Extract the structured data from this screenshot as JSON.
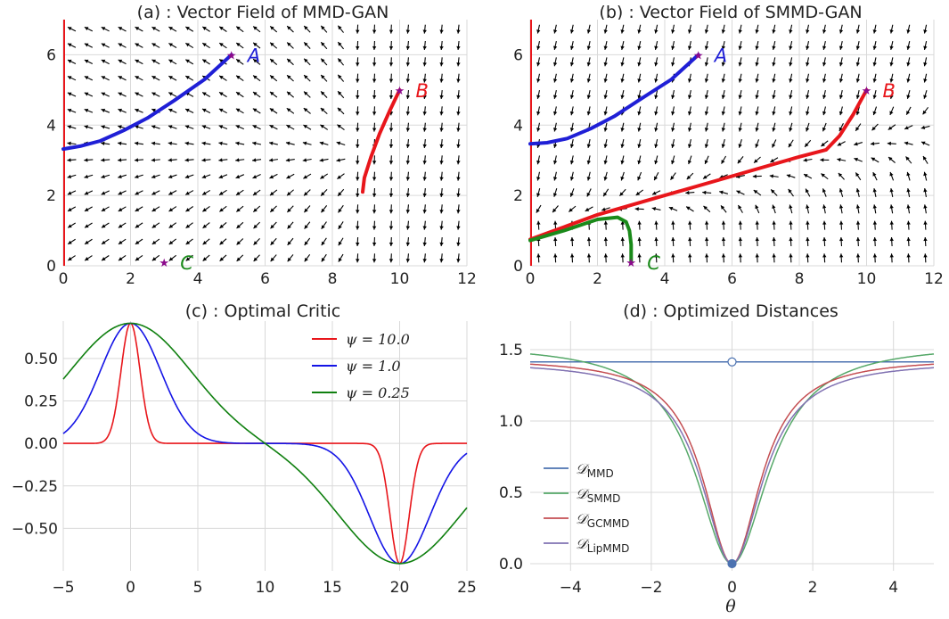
{
  "chart_data": [
    {
      "type": "vector_field",
      "title": "(a) : Vector Field of MMD-GAN",
      "xlim": [
        0,
        12
      ],
      "ylim": [
        0,
        7
      ],
      "xticks": [
        0,
        2,
        4,
        6,
        8,
        10,
        12
      ],
      "yticks": [
        0,
        2,
        4,
        6
      ],
      "field": "repulsive",
      "points": [
        {
          "label": "A",
          "x": 5,
          "y": 6,
          "color": "#1f1fd6"
        },
        {
          "label": "B",
          "x": 10,
          "y": 5,
          "color": "#e8161b"
        },
        {
          "label": "C",
          "x": 3,
          "y": 0.1,
          "color": "#1a8a1a"
        }
      ],
      "trajectories": [
        {
          "name": "A",
          "color": "#1f1fd6",
          "x": [
            5,
            4.2,
            3.3,
            2.5,
            1.8,
            1.1,
            0.5,
            0.0
          ],
          "y": [
            6,
            5.3,
            4.7,
            4.2,
            3.85,
            3.55,
            3.4,
            3.32
          ]
        },
        {
          "name": "B",
          "color": "#e8161b",
          "x": [
            10,
            9.7,
            9.4,
            9.15,
            8.95,
            8.9
          ],
          "y": [
            5,
            4.4,
            3.75,
            3.1,
            2.5,
            2.1
          ]
        },
        {
          "name": "C",
          "color": "#1a8a1a",
          "x": [
            3
          ],
          "y": [
            0.1
          ]
        }
      ]
    },
    {
      "type": "vector_field",
      "title": "(b) : Vector Field of SMMD-GAN",
      "xlim": [
        0,
        12
      ],
      "ylim": [
        0,
        7
      ],
      "xticks": [
        0,
        2,
        4,
        6,
        8,
        10,
        12
      ],
      "yticks": [
        0,
        2,
        4,
        6
      ],
      "field": "attractive",
      "points": [
        {
          "label": "A",
          "x": 5,
          "y": 6,
          "color": "#1f1fd6"
        },
        {
          "label": "B",
          "x": 10,
          "y": 5,
          "color": "#e8161b"
        },
        {
          "label": "C",
          "x": 3,
          "y": 0.1,
          "color": "#1a8a1a"
        }
      ],
      "trajectories": [
        {
          "name": "A",
          "color": "#1f1fd6",
          "x": [
            5,
            4.2,
            3.3,
            2.5,
            1.8,
            1.1,
            0.5,
            0.0
          ],
          "y": [
            6,
            5.3,
            4.75,
            4.25,
            3.9,
            3.62,
            3.5,
            3.47
          ]
        },
        {
          "name": "B",
          "color": "#e8161b",
          "x": [
            10,
            9.6,
            9.2,
            8.8,
            8.0,
            6.0,
            4.0,
            2.0,
            1.0,
            0.0
          ],
          "y": [
            5,
            4.3,
            3.7,
            3.3,
            3.1,
            2.55,
            2.0,
            1.45,
            1.1,
            0.75
          ]
        },
        {
          "name": "C",
          "color": "#1a8a1a",
          "x": [
            3.0,
            3.0,
            2.95,
            2.85,
            2.6,
            2.0,
            1.0,
            0.0
          ],
          "y": [
            0.1,
            0.6,
            1.0,
            1.25,
            1.38,
            1.32,
            1.0,
            0.72
          ]
        }
      ]
    },
    {
      "type": "line",
      "title": "(c) : Optimal Critic",
      "xlim": [
        -5,
        25
      ],
      "ylim": [
        -0.75,
        0.72
      ],
      "xticks": [
        -5,
        0,
        5,
        10,
        15,
        20,
        25
      ],
      "yticks": [
        -0.5,
        -0.25,
        0.0,
        0.25,
        0.5
      ],
      "ytick_labels": [
        "−0.50",
        "−0.25",
        "0.00",
        "0.25",
        "0.50"
      ],
      "xtick_labels": [
        "−5",
        "0",
        "5",
        "10",
        "15",
        "20",
        "25"
      ],
      "series": [
        {
          "name": "ψ = 10.0",
          "color": "#e8161b",
          "psi": 10.0
        },
        {
          "name": "ψ = 1.0",
          "color": "#1414e6",
          "psi": 1.0
        },
        {
          "name": "ψ = 0.25",
          "color": "#108010",
          "psi": 0.25
        }
      ],
      "amplitude": 0.7071,
      "centers": [
        0,
        20
      ]
    },
    {
      "type": "line",
      "title": "(d) : Optimized Distances",
      "xlabel": "θ",
      "xlim": [
        -5,
        5
      ],
      "ylim": [
        -0.05,
        1.7
      ],
      "xticks": [
        -4,
        -2,
        0,
        2,
        4
      ],
      "xtick_labels": [
        "−4",
        "−2",
        "0",
        "2",
        "4"
      ],
      "yticks": [
        0.0,
        0.5,
        1.0,
        1.5
      ],
      "ytick_labels": [
        "0.0",
        "0.5",
        "1.0",
        "1.5"
      ],
      "series": [
        {
          "name": "𝒟MMD",
          "sub": "MMD",
          "color": "#4c72b0",
          "kind": "flat",
          "value": 1.414
        },
        {
          "name": "𝒟SMMD",
          "sub": "SMMD",
          "color": "#55a868",
          "kind": "lorentz",
          "a": 1.54,
          "b": 1.2
        },
        {
          "name": "𝒟GCMMD",
          "sub": "GCMMD",
          "color": "#c44e52",
          "kind": "lorentz",
          "a": 1.44,
          "b": 0.75
        },
        {
          "name": "𝒟LipMMD",
          "sub": "LipMMD",
          "color": "#8172b2",
          "kind": "lorentz",
          "a": 1.42,
          "b": 0.85
        }
      ],
      "markers": [
        {
          "x": 0,
          "y": 1.414,
          "style": "open"
        },
        {
          "x": 0,
          "y": 0.0,
          "style": "filled"
        }
      ]
    }
  ],
  "legend_symbol": "𝒟"
}
